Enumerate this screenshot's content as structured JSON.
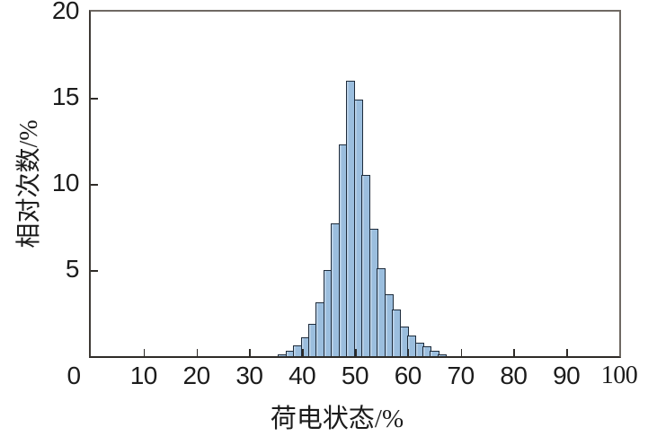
{
  "figure": {
    "background": "#ffffff",
    "axis_color": "#2e2b27",
    "box_color": "#6f6963",
    "text_color": "#1c1c1c"
  },
  "chart_data": {
    "type": "bar",
    "subtype": "histogram",
    "title": "",
    "xlabel": "荷电状态/%",
    "ylabel": "相对次数/%",
    "xlim": [
      0,
      100
    ],
    "ylim": [
      0,
      20
    ],
    "x_tick_values": [
      0,
      10,
      20,
      30,
      40,
      50,
      60,
      70,
      80,
      90,
      100
    ],
    "x_tick_labels": [
      "0",
      "10",
      "20",
      "30",
      "40",
      "50",
      "60",
      "70",
      "80",
      "90",
      "100"
    ],
    "y_tick_values": [
      5,
      10,
      15,
      20
    ],
    "y_tick_labels": [
      "5",
      "10",
      "15",
      "20"
    ],
    "grid": false,
    "legend": null,
    "bar_fill": "#9bbede",
    "bar_stroke": "#1e2c3c",
    "bins": {
      "start": 35.4,
      "width": 1.44,
      "values": [
        0.1,
        0.3,
        0.6,
        1.1,
        1.9,
        3.1,
        5.0,
        7.7,
        12.3,
        16.0,
        14.9,
        10.5,
        7.4,
        5.1,
        3.6,
        2.7,
        1.7,
        1.2,
        0.8,
        0.55,
        0.3,
        0.12
      ]
    }
  }
}
